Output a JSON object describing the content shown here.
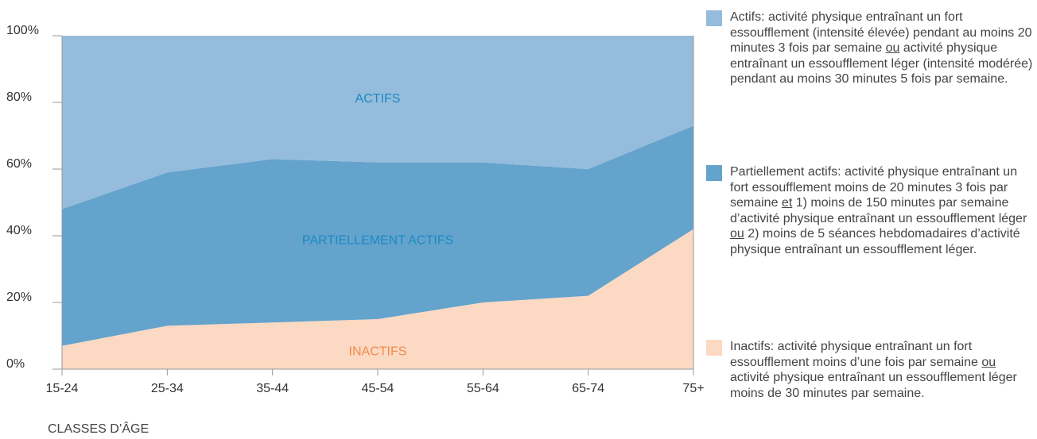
{
  "chart_data": {
    "type": "stacked_area",
    "x_label": "CLASSES D’ÂGE",
    "categories": [
      "15-24",
      "25-34",
      "35-44",
      "45-54",
      "55-64",
      "65-74",
      "75+"
    ],
    "ylim": [
      0,
      100
    ],
    "yticks": [
      {
        "value": 0,
        "label": "0%"
      },
      {
        "value": 20,
        "label": "20%"
      },
      {
        "value": 40,
        "label": "40%"
      },
      {
        "value": 60,
        "label": "60%"
      },
      {
        "value": 80,
        "label": "80%"
      },
      {
        "value": 100,
        "label": "100%"
      }
    ],
    "series": [
      {
        "name": "Inactifs:",
        "label": "INACTIFS",
        "color": "#fcd9c3",
        "label_color": "#ef8a4f",
        "values": [
          7,
          13,
          14,
          15,
          20,
          22,
          42
        ],
        "description": [
          "activité physique entraînant un fort essoufflement moins d’une fois par semaine ",
          {
            "text": "ou",
            "underline": true
          },
          " activité physique entraînant un essoufflement léger moins de 30 minutes par semaine."
        ]
      },
      {
        "name": "Partiellement actifs:",
        "label": "PARTIELLEMENT ACTIFS",
        "color": "#64a3cc",
        "label_color": "#1a8ac4",
        "values": [
          41,
          46,
          49,
          47,
          42,
          38,
          31
        ],
        "description": [
          "activité physique entraînant un fort essoufflement moins de 20 minutes 3 fois par semaine ",
          {
            "text": "et",
            "underline": true
          },
          " 1) moins de 150 minutes par semaine d’activité physique entraînant un essoufflement léger ",
          {
            "text": "ou",
            "underline": true
          },
          " 2) moins de 5 séances hebdomadaires d’activité physique entraînant un essoufflement léger."
        ]
      },
      {
        "name": "Actifs:",
        "label": "ACTIFS",
        "color": "#95bcdc",
        "label_color": "#1a8ac4",
        "values": [
          52,
          41,
          37,
          38,
          38,
          40,
          27
        ],
        "description": [
          "activité physique entraînant un fort essoufflement (intensité élevée) pendant au moins 20 minutes 3 fois par semaine ",
          {
            "text": "ou",
            "underline": true
          },
          " activité physique entraînant un essoufflement léger (intensité modérée) pendant au moins 30 minutes 5 fois par semaine."
        ]
      }
    ]
  }
}
